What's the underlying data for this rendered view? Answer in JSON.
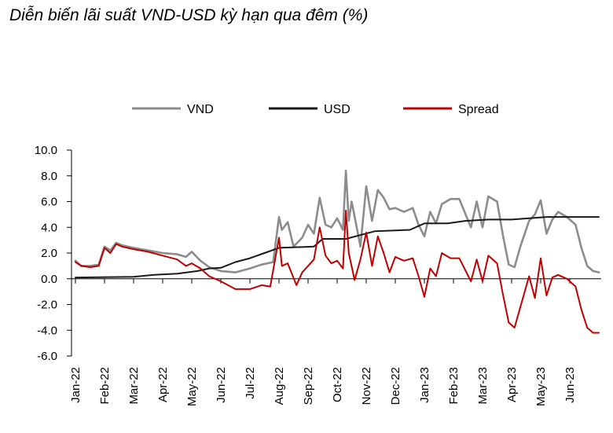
{
  "title": "Diễn biến lãi suất VND-USD kỳ hạn qua đêm (%)",
  "chart_data": {
    "type": "line",
    "title": "Diễn biến lãi suất VND-USD kỳ hạn qua đêm (%)",
    "ylim": [
      -6,
      10
    ],
    "yticks": [
      "10.0",
      "8.0",
      "6.0",
      "4.0",
      "2.0",
      "0.0",
      "-2.0",
      "-4.0",
      "-6.0"
    ],
    "ytick_values": [
      10,
      8,
      6,
      4,
      2,
      0,
      -2,
      -4,
      -6
    ],
    "categories": [
      "Jan-22",
      "Feb-22",
      "Mar-22",
      "Apr-22",
      "May-22",
      "Jun-22",
      "Jul-22",
      "Aug-22",
      "Sep-22",
      "Oct-22",
      "Nov-22",
      "Dec-22",
      "Jan-23",
      "Feb-23",
      "Mar-23",
      "Apr-23",
      "May-23",
      "Jun-23"
    ],
    "legend_position": "top",
    "series": [
      {
        "name": "VND",
        "color": "#8c8c8c",
        "points": [
          [
            0,
            1.4
          ],
          [
            0.2,
            1.0
          ],
          [
            0.5,
            1.0
          ],
          [
            0.8,
            1.1
          ],
          [
            1.0,
            2.5
          ],
          [
            1.2,
            2.2
          ],
          [
            1.4,
            2.8
          ],
          [
            1.6,
            2.6
          ],
          [
            2.0,
            2.4
          ],
          [
            2.5,
            2.2
          ],
          [
            3.0,
            2.0
          ],
          [
            3.5,
            1.9
          ],
          [
            3.8,
            1.7
          ],
          [
            4.0,
            2.1
          ],
          [
            4.3,
            1.4
          ],
          [
            4.6,
            0.9
          ],
          [
            5.0,
            0.6
          ],
          [
            5.5,
            0.5
          ],
          [
            6.0,
            0.8
          ],
          [
            6.4,
            1.1
          ],
          [
            6.8,
            1.3
          ],
          [
            7.0,
            4.8
          ],
          [
            7.1,
            3.8
          ],
          [
            7.3,
            4.4
          ],
          [
            7.5,
            2.5
          ],
          [
            7.8,
            3.2
          ],
          [
            8.0,
            4.2
          ],
          [
            8.2,
            3.5
          ],
          [
            8.4,
            6.3
          ],
          [
            8.6,
            4.2
          ],
          [
            8.8,
            4.0
          ],
          [
            9.0,
            4.7
          ],
          [
            9.2,
            3.8
          ],
          [
            9.3,
            8.4
          ],
          [
            9.4,
            4.5
          ],
          [
            9.5,
            6.0
          ],
          [
            9.8,
            2.5
          ],
          [
            10.0,
            7.2
          ],
          [
            10.2,
            4.5
          ],
          [
            10.4,
            6.9
          ],
          [
            10.6,
            6.3
          ],
          [
            10.8,
            5.4
          ],
          [
            11.0,
            5.5
          ],
          [
            11.3,
            5.2
          ],
          [
            11.6,
            5.5
          ],
          [
            11.8,
            4.2
          ],
          [
            12.0,
            3.3
          ],
          [
            12.2,
            5.2
          ],
          [
            12.4,
            4.3
          ],
          [
            12.6,
            5.8
          ],
          [
            12.9,
            6.2
          ],
          [
            13.2,
            6.2
          ],
          [
            13.6,
            4.0
          ],
          [
            13.8,
            6.0
          ],
          [
            14.0,
            4.0
          ],
          [
            14.2,
            6.4
          ],
          [
            14.5,
            6.0
          ],
          [
            14.7,
            3.4
          ],
          [
            14.9,
            1.1
          ],
          [
            15.1,
            0.9
          ],
          [
            15.3,
            2.5
          ],
          [
            15.6,
            4.5
          ],
          [
            15.8,
            5.0
          ],
          [
            16.0,
            6.1
          ],
          [
            16.2,
            3.5
          ],
          [
            16.4,
            4.6
          ],
          [
            16.6,
            5.2
          ],
          [
            16.9,
            4.8
          ],
          [
            17.2,
            4.2
          ],
          [
            17.4,
            2.4
          ],
          [
            17.6,
            1.0
          ],
          [
            17.8,
            0.6
          ],
          [
            18.0,
            0.5
          ]
        ]
      },
      {
        "name": "USD",
        "color": "#1a1a1a",
        "points": [
          [
            0,
            0.1
          ],
          [
            2.0,
            0.15
          ],
          [
            2.7,
            0.3
          ],
          [
            3.5,
            0.4
          ],
          [
            4.2,
            0.6
          ],
          [
            4.6,
            0.8
          ],
          [
            5.0,
            0.85
          ],
          [
            5.5,
            1.3
          ],
          [
            6.0,
            1.6
          ],
          [
            6.5,
            2.0
          ],
          [
            7.0,
            2.4
          ],
          [
            8.2,
            2.5
          ],
          [
            8.5,
            3.1
          ],
          [
            9.3,
            3.1
          ],
          [
            10.3,
            3.7
          ],
          [
            11.5,
            3.8
          ],
          [
            12.0,
            4.3
          ],
          [
            12.8,
            4.3
          ],
          [
            13.4,
            4.5
          ],
          [
            14.2,
            4.6
          ],
          [
            15.0,
            4.6
          ],
          [
            15.6,
            4.7
          ],
          [
            16.2,
            4.8
          ],
          [
            17.0,
            4.8
          ],
          [
            18.0,
            4.8
          ]
        ]
      },
      {
        "name": "Spread",
        "color": "#c00000",
        "points": [
          [
            0,
            1.3
          ],
          [
            0.2,
            1.0
          ],
          [
            0.5,
            0.9
          ],
          [
            0.8,
            1.0
          ],
          [
            1.0,
            2.4
          ],
          [
            1.2,
            2.0
          ],
          [
            1.4,
            2.7
          ],
          [
            1.6,
            2.5
          ],
          [
            2.0,
            2.3
          ],
          [
            2.5,
            2.1
          ],
          [
            3.0,
            1.8
          ],
          [
            3.5,
            1.5
          ],
          [
            3.8,
            1.0
          ],
          [
            4.0,
            1.2
          ],
          [
            4.3,
            0.8
          ],
          [
            4.6,
            0.2
          ],
          [
            5.0,
            -0.2
          ],
          [
            5.5,
            -0.8
          ],
          [
            6.0,
            -0.8
          ],
          [
            6.4,
            -0.5
          ],
          [
            6.7,
            -0.6
          ],
          [
            7.0,
            3.2
          ],
          [
            7.1,
            1.0
          ],
          [
            7.3,
            1.2
          ],
          [
            7.6,
            -0.5
          ],
          [
            7.8,
            0.5
          ],
          [
            8.0,
            1.0
          ],
          [
            8.2,
            1.5
          ],
          [
            8.4,
            4.0
          ],
          [
            8.6,
            1.8
          ],
          [
            8.8,
            1.2
          ],
          [
            9.0,
            1.4
          ],
          [
            9.2,
            0.8
          ],
          [
            9.3,
            5.3
          ],
          [
            9.4,
            2.0
          ],
          [
            9.6,
            -0.1
          ],
          [
            9.8,
            1.5
          ],
          [
            10.0,
            3.6
          ],
          [
            10.2,
            1.0
          ],
          [
            10.4,
            3.3
          ],
          [
            10.6,
            2.0
          ],
          [
            10.8,
            0.5
          ],
          [
            11.0,
            1.7
          ],
          [
            11.3,
            1.4
          ],
          [
            11.6,
            1.6
          ],
          [
            11.8,
            0.2
          ],
          [
            12.0,
            -1.4
          ],
          [
            12.2,
            0.8
          ],
          [
            12.4,
            0.2
          ],
          [
            12.6,
            2.0
          ],
          [
            12.9,
            1.6
          ],
          [
            13.2,
            1.6
          ],
          [
            13.6,
            -0.2
          ],
          [
            13.8,
            1.5
          ],
          [
            14.0,
            -0.2
          ],
          [
            14.2,
            1.8
          ],
          [
            14.5,
            1.2
          ],
          [
            14.7,
            -1.2
          ],
          [
            14.9,
            -3.4
          ],
          [
            15.1,
            -3.8
          ],
          [
            15.3,
            -2.2
          ],
          [
            15.6,
            0.2
          ],
          [
            15.8,
            -1.5
          ],
          [
            16.0,
            1.6
          ],
          [
            16.2,
            -1.3
          ],
          [
            16.4,
            0.1
          ],
          [
            16.6,
            0.3
          ],
          [
            16.9,
            0.0
          ],
          [
            17.2,
            -0.6
          ],
          [
            17.4,
            -2.4
          ],
          [
            17.6,
            -3.8
          ],
          [
            17.8,
            -4.2
          ],
          [
            18.0,
            -4.2
          ]
        ]
      }
    ]
  }
}
